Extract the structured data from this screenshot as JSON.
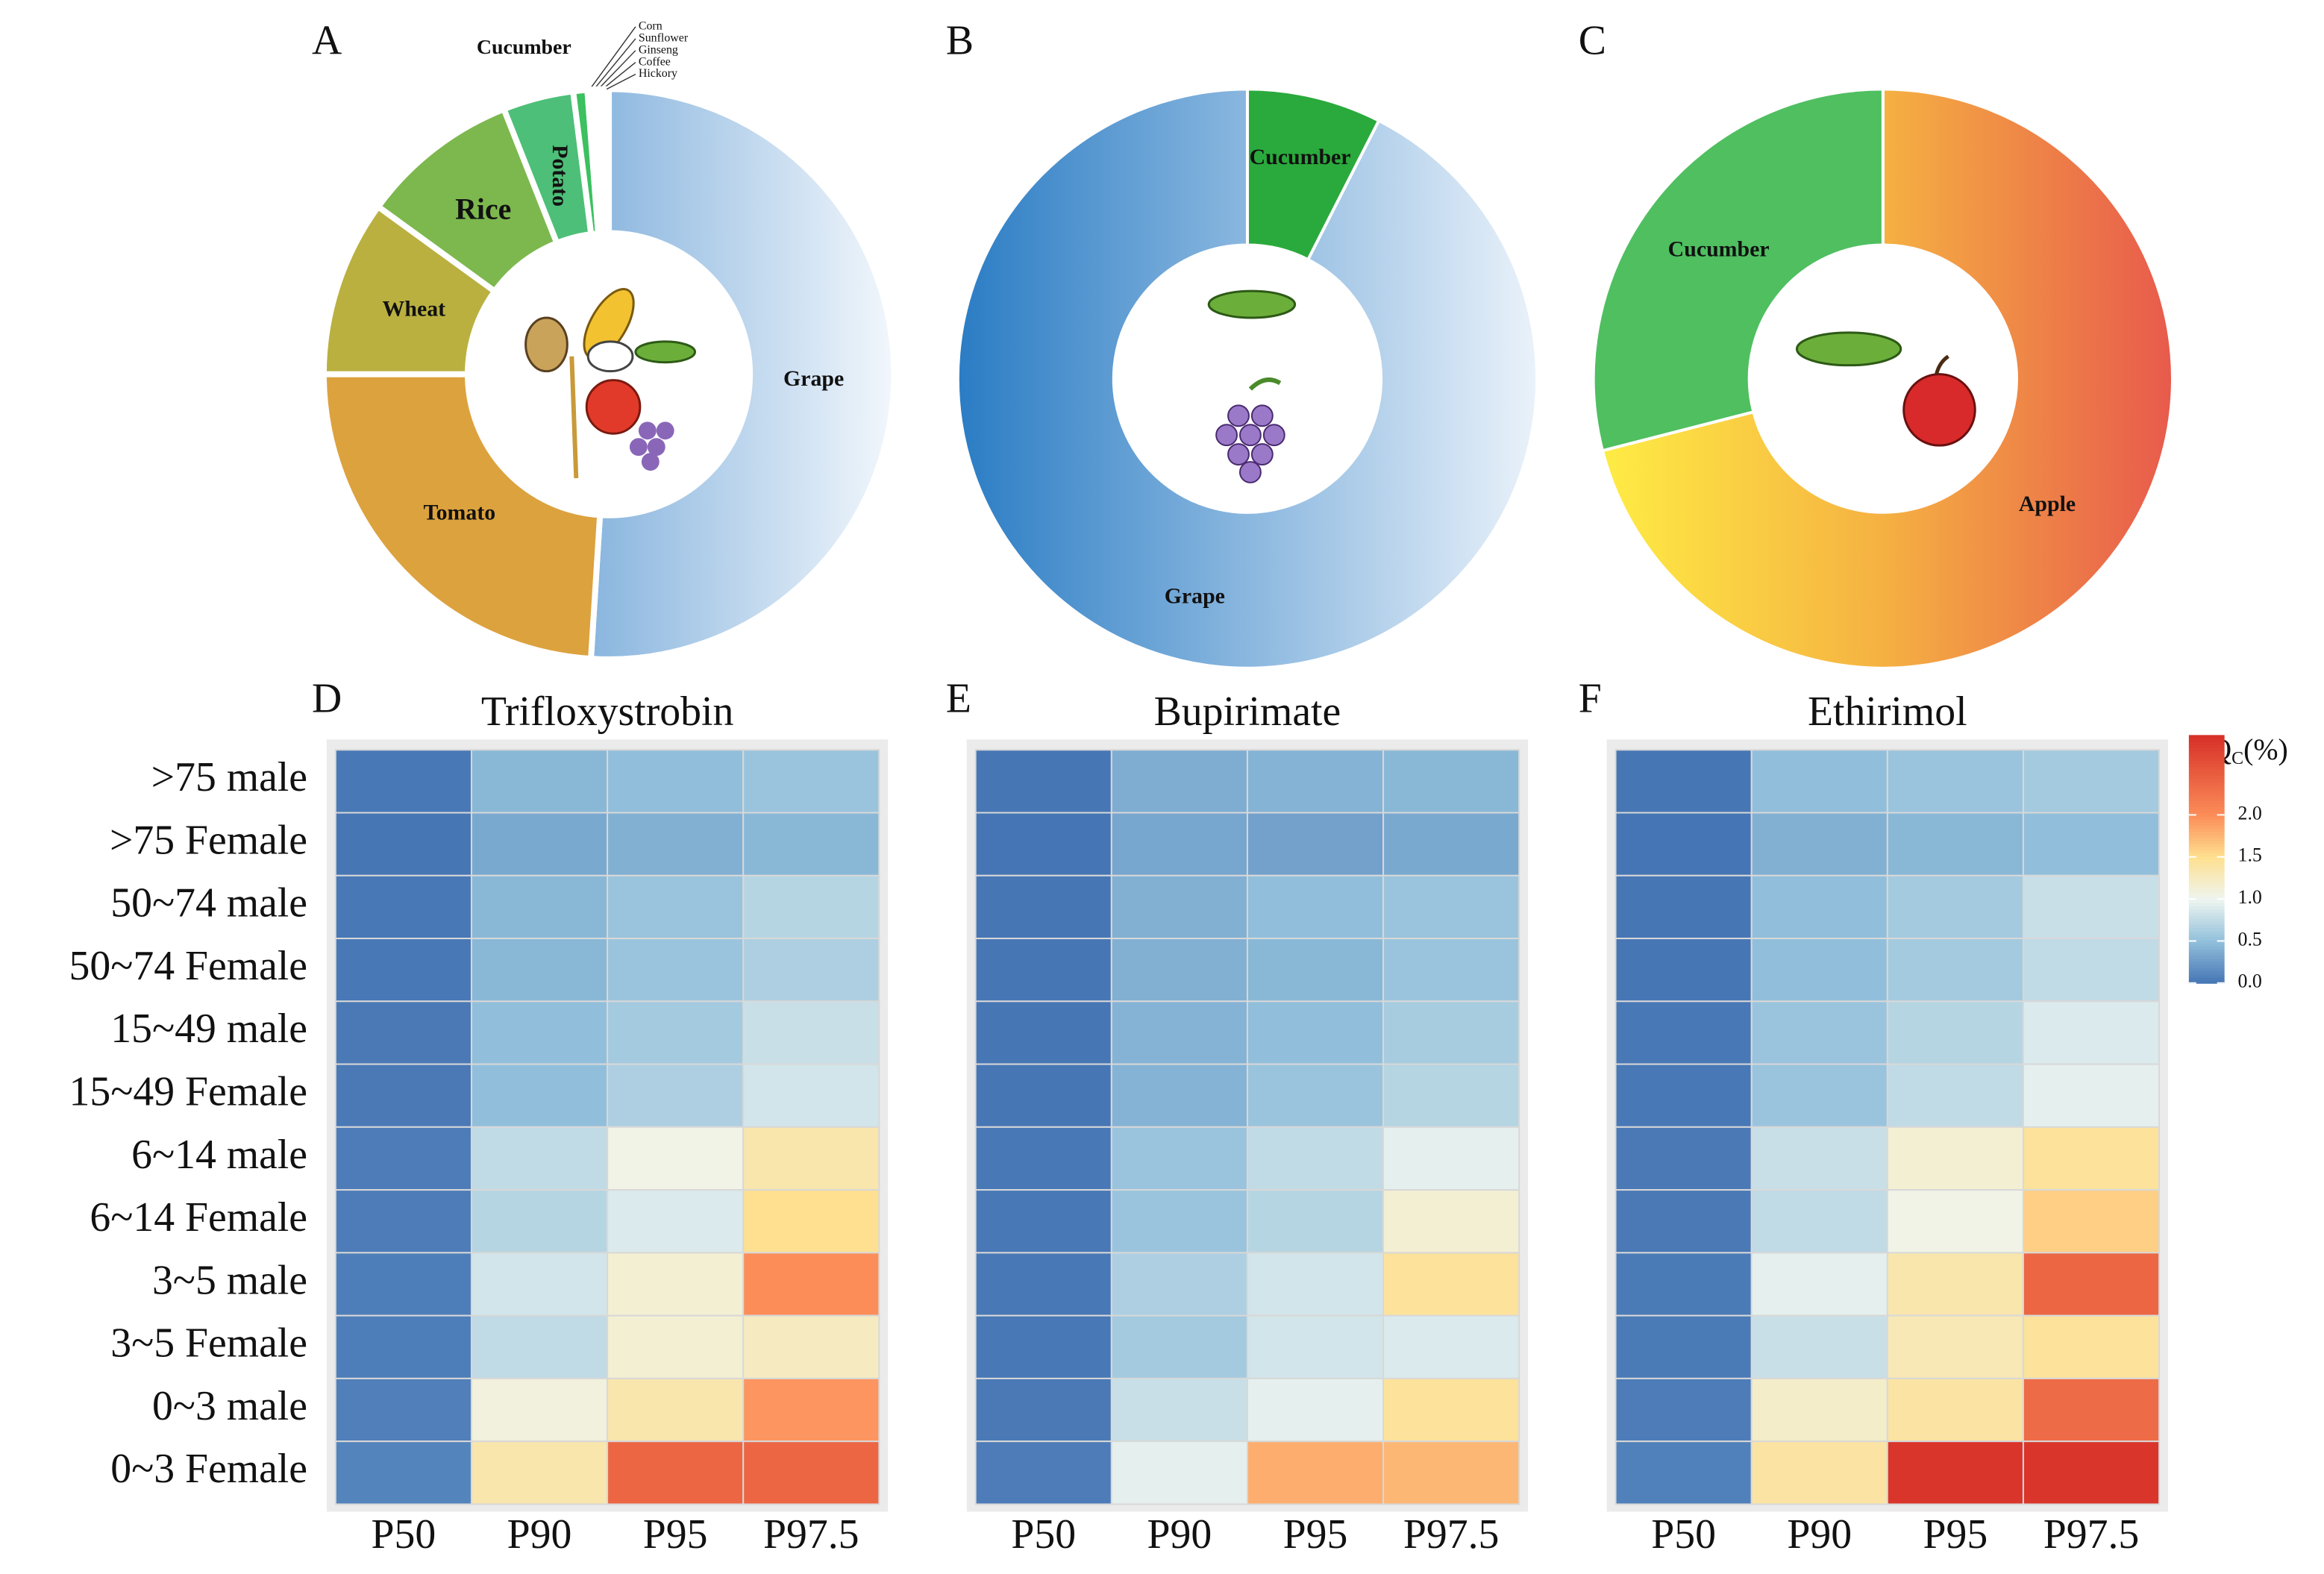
{
  "chart_data": [
    {
      "type": "donut",
      "panel": "A",
      "categories": [
        "Grape",
        "Tomato",
        "Wheat",
        "Rice",
        "Potato",
        "Cucumber",
        "Corn",
        "Sunflower",
        "Ginseng",
        "Coffee",
        "Hickory"
      ],
      "values": [
        51,
        24,
        10,
        9,
        4,
        0.8,
        0.24,
        0.24,
        0.24,
        0.24,
        0.24
      ],
      "colors": [
        [
          "#2c7bc4",
          "#f2f7fc"
        ],
        "#dca23e",
        "#b9b040",
        "#7db84e",
        "#4dbf78",
        "#3cc060",
        "#3a86c8",
        "#5aa0d8",
        "#2f6fb0",
        "#7ab0e0",
        "#1f5f9f"
      ]
    },
    {
      "type": "donut",
      "panel": "B",
      "categories": [
        "Cucumber",
        "Grape"
      ],
      "values": [
        7.5,
        92.5
      ],
      "colors": [
        "#2aaa3c",
        [
          "#2a7cc4",
          "#eaf2fa"
        ]
      ]
    },
    {
      "type": "donut",
      "panel": "C",
      "categories": [
        "Apple",
        "Cucumber"
      ],
      "values": [
        71,
        29
      ],
      "colors": [
        [
          "#ffee44",
          "#f5b142",
          "#e85a4c"
        ],
        "#4fbf60"
      ]
    },
    {
      "type": "heatmap",
      "panel": "D",
      "title": "Trifloxystrobin",
      "categories": [
        "P50",
        "P90",
        "P95",
        "P97.5"
      ],
      "rows": [
        ">75 male",
        ">75 Female",
        "50~74 male",
        "50~74 Female",
        "15~49 male",
        "15~49 Female",
        "6~14 male",
        "6~14 Female",
        "3~5 male",
        "3~5 Female",
        "0~3 male",
        "0~3 Female"
      ],
      "values": [
        [
          0.02,
          0.45,
          0.5,
          0.55
        ],
        [
          0.01,
          0.35,
          0.4,
          0.45
        ],
        [
          0.02,
          0.45,
          0.55,
          0.7
        ],
        [
          0.02,
          0.45,
          0.55,
          0.65
        ],
        [
          0.03,
          0.5,
          0.6,
          0.8
        ],
        [
          0.03,
          0.5,
          0.65,
          0.85
        ],
        [
          0.05,
          0.75,
          1.05,
          1.35
        ],
        [
          0.05,
          0.7,
          0.9,
          1.5
        ],
        [
          0.06,
          0.85,
          1.15,
          2.0
        ],
        [
          0.06,
          0.75,
          1.15,
          1.25
        ],
        [
          0.07,
          1.1,
          1.35,
          1.95
        ],
        [
          0.1,
          1.35,
          2.4,
          2.4
        ]
      ]
    },
    {
      "type": "heatmap",
      "panel": "E",
      "title": "Bupirimate",
      "categories": [
        "P50",
        "P90",
        "P95",
        "P97.5"
      ],
      "values": [
        [
          0.01,
          0.38,
          0.42,
          0.45
        ],
        [
          0.0,
          0.33,
          0.3,
          0.35
        ],
        [
          0.01,
          0.4,
          0.5,
          0.55
        ],
        [
          0.01,
          0.4,
          0.45,
          0.55
        ],
        [
          0.01,
          0.42,
          0.5,
          0.62
        ],
        [
          0.01,
          0.42,
          0.55,
          0.7
        ],
        [
          0.02,
          0.55,
          0.75,
          0.95
        ],
        [
          0.02,
          0.55,
          0.7,
          1.15
        ],
        [
          0.02,
          0.65,
          0.85,
          1.45
        ],
        [
          0.02,
          0.6,
          0.85,
          0.9
        ],
        [
          0.03,
          0.8,
          0.95,
          1.45
        ],
        [
          0.05,
          0.95,
          1.8,
          1.75
        ]
      ]
    },
    {
      "type": "heatmap",
      "panel": "F",
      "title": "Ethirimol",
      "categories": [
        "P50",
        "P90",
        "P95",
        "P97.5"
      ],
      "values": [
        [
          0.01,
          0.5,
          0.55,
          0.6
        ],
        [
          0.0,
          0.4,
          0.45,
          0.5
        ],
        [
          0.01,
          0.5,
          0.6,
          0.8
        ],
        [
          0.01,
          0.5,
          0.6,
          0.75
        ],
        [
          0.02,
          0.55,
          0.7,
          0.9
        ],
        [
          0.02,
          0.55,
          0.75,
          0.95
        ],
        [
          0.03,
          0.8,
          1.15,
          1.45
        ],
        [
          0.03,
          0.75,
          1.05,
          1.6
        ],
        [
          0.04,
          0.95,
          1.35,
          2.4
        ],
        [
          0.04,
          0.8,
          1.3,
          1.45
        ],
        [
          0.05,
          1.2,
          1.4,
          2.35
        ],
        [
          0.08,
          1.4,
          2.9,
          2.9
        ]
      ]
    }
  ],
  "colorbar": {
    "title": "RQ",
    "title_sub": "C",
    "title_unit": "(%)",
    "lim": [
      0,
      2.95
    ],
    "ticks": [
      {
        "value": 0,
        "label": "0.0"
      },
      {
        "value": 0.5,
        "label": "0.5"
      },
      {
        "value": 1,
        "label": "1.0"
      },
      {
        "value": 1.5,
        "label": "1.5"
      },
      {
        "value": 2,
        "label": "2.0"
      }
    ],
    "stops": [
      [
        0,
        "#4575b4"
      ],
      [
        0.5,
        "#91bfdb"
      ],
      [
        1,
        "#eef5f0"
      ],
      [
        1.5,
        "#fee090"
      ],
      [
        2,
        "#fc8d59"
      ],
      [
        2.95,
        "#d73027"
      ]
    ]
  }
}
